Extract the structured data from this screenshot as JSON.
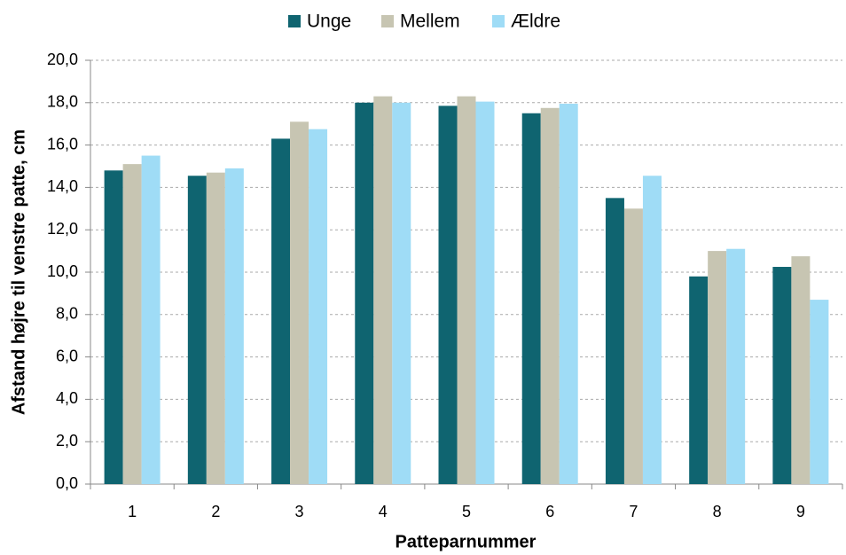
{
  "chart_data": {
    "type": "bar",
    "x_label": "Patteparnummer",
    "y_label": "Afstand højre til venstre patte, cm",
    "categories": [
      "1",
      "2",
      "3",
      "4",
      "5",
      "6",
      "7",
      "8",
      "9"
    ],
    "series": [
      {
        "name": "Unge",
        "color": "#0f6470",
        "values": [
          14.8,
          14.55,
          16.3,
          18.0,
          17.85,
          17.5,
          13.5,
          9.8,
          10.25
        ]
      },
      {
        "name": "Mellem",
        "color": "#c7c5b2",
        "values": [
          15.1,
          14.7,
          17.1,
          18.3,
          18.3,
          17.75,
          13.0,
          11.0,
          10.75
        ]
      },
      {
        "name": "Ældre",
        "color": "#9fdcf6",
        "values": [
          15.5,
          14.9,
          16.75,
          18.0,
          18.05,
          17.95,
          14.55,
          11.1,
          8.7
        ]
      }
    ],
    "ylim": [
      0,
      20
    ],
    "yticks": [
      {
        "value": 0,
        "label": "0,0"
      },
      {
        "value": 2,
        "label": "2,0"
      },
      {
        "value": 4,
        "label": "4,0"
      },
      {
        "value": 6,
        "label": "6,0"
      },
      {
        "value": 8,
        "label": "8,0"
      },
      {
        "value": 10,
        "label": "10,0"
      },
      {
        "value": 12,
        "label": "12,0"
      },
      {
        "value": 14,
        "label": "14,0"
      },
      {
        "value": 16,
        "label": "16,0"
      },
      {
        "value": 18,
        "label": "18,0"
      },
      {
        "value": 20,
        "label": "20,0"
      }
    ],
    "grid": true,
    "legend": "top"
  }
}
